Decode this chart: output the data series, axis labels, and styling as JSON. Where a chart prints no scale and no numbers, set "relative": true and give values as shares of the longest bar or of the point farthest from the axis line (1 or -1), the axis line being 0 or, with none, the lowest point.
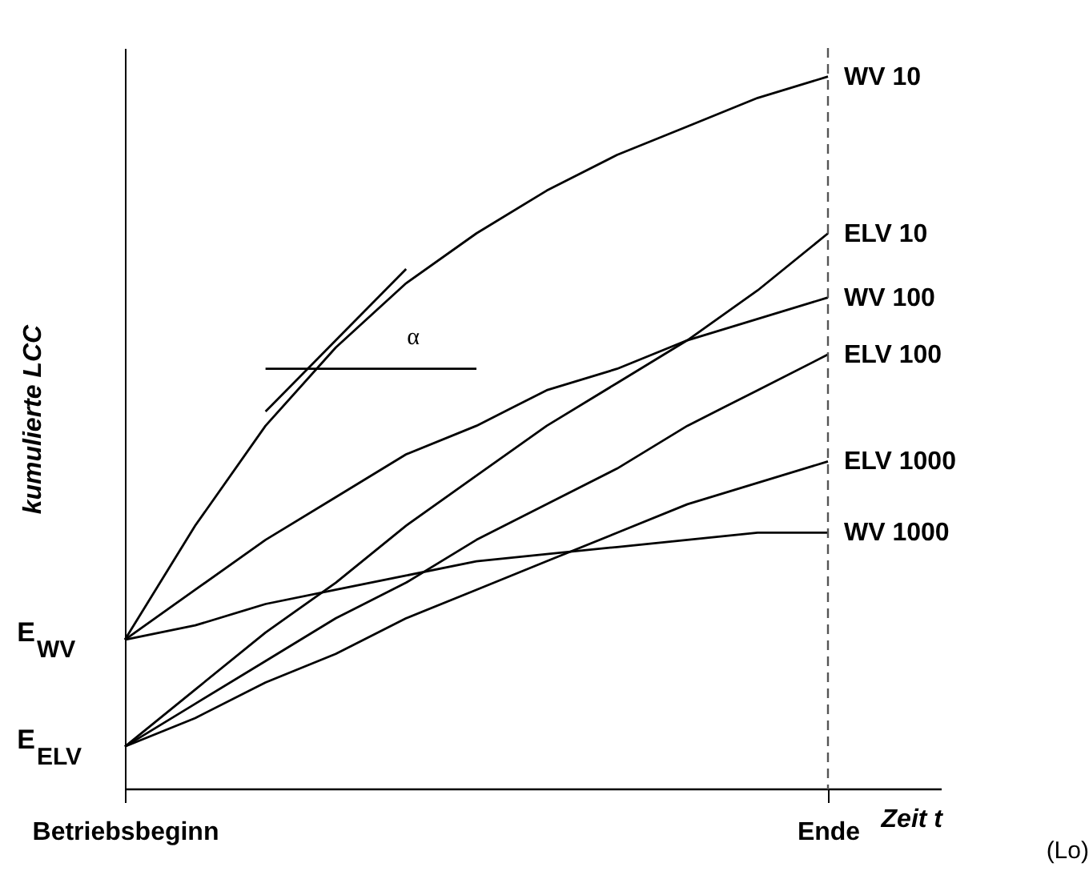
{
  "chart_data": {
    "type": "line",
    "relative": true,
    "xlabel": "Zeit t",
    "ylabel": "kumulierte LCC",
    "categories": [
      "Betriebsbeginn",
      null,
      null,
      null,
      null,
      null,
      null,
      null,
      null,
      null,
      "Ende"
    ],
    "series": [
      {
        "name": "WV 10",
        "color": "#000000",
        "values": [
          0.21,
          0.37,
          0.51,
          0.62,
          0.71,
          0.78,
          0.84,
          0.89,
          0.93,
          0.97,
          1.0
        ]
      },
      {
        "name": "ELV 10",
        "color": "#000000",
        "values": [
          0.06,
          0.14,
          0.22,
          0.29,
          0.37,
          0.44,
          0.51,
          0.57,
          0.63,
          0.7,
          0.78
        ]
      },
      {
        "name": "WV 100",
        "color": "#000000",
        "values": [
          0.21,
          0.28,
          0.35,
          0.41,
          0.47,
          0.51,
          0.56,
          0.59,
          0.63,
          0.66,
          0.69
        ]
      },
      {
        "name": "ELV 100",
        "color": "#000000",
        "values": [
          0.06,
          0.12,
          0.18,
          0.24,
          0.29,
          0.35,
          0.4,
          0.45,
          0.51,
          0.56,
          0.61
        ]
      },
      {
        "name": "ELV 1000",
        "color": "#000000",
        "values": [
          0.06,
          0.1,
          0.15,
          0.19,
          0.24,
          0.28,
          0.32,
          0.36,
          0.4,
          0.43,
          0.46
        ]
      },
      {
        "name": "WV 1000",
        "color": "#000000",
        "values": [
          0.21,
          0.23,
          0.26,
          0.28,
          0.3,
          0.32,
          0.33,
          0.34,
          0.35,
          0.36,
          0.36
        ]
      },
      {
        "color": "#000000",
        "values": [
          null,
          null,
          0.53,
          0.63,
          0.73,
          null,
          null,
          null,
          null,
          null,
          null
        ]
      },
      {
        "color": "#000000",
        "values": [
          null,
          null,
          0.59,
          0.59,
          0.59,
          0.59,
          null,
          null,
          null,
          null,
          null
        ]
      }
    ],
    "annotations": [
      "α",
      {
        "text": "E$_{WV}$",
        "x": "Betriebsbeginn",
        "y": 0.21
      },
      {
        "text": "E$_{ELV}$",
        "x": "Betriebsbeginn",
        "y": 0.06
      },
      "(Lo)"
    ],
    "ref_lines": [
      {
        "axis": "x",
        "value": "Ende",
        "line_style": "dashed",
        "color": "#555555"
      }
    ],
    "grid": false,
    "legend": false,
    "marker": "none",
    "line_style": "solid"
  }
}
